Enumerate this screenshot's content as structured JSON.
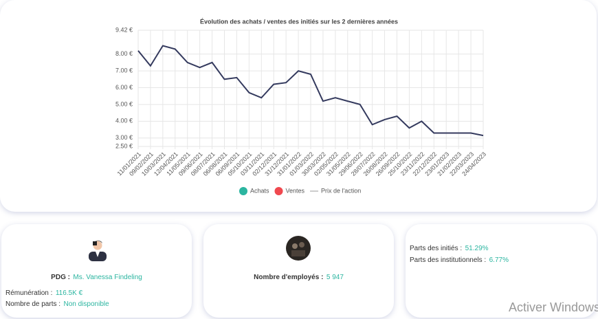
{
  "chart_data": {
    "type": "line",
    "title": "Évolution des achats / ventes des initiés sur les 2 dernières années",
    "categories": [
      "11/01/2021",
      "09/02/2021",
      "10/03/2021",
      "12/04/2021",
      "11/05/2021",
      "09/06/2021",
      "08/07/2021",
      "06/08/2021",
      "06/09/2021",
      "05/10/2021",
      "03/11/2021",
      "02/12/2021",
      "31/12/2021",
      "31/01/2022",
      "01/03/2022",
      "30/03/2022",
      "02/05/2022",
      "31/05/2022",
      "29/06/2022",
      "28/07/2022",
      "26/08/2022",
      "26/09/2022",
      "25/10/2022",
      "23/11/2022",
      "22/12/2022",
      "23/01/2023",
      "21/02/2023",
      "22/03/2023",
      "24/04/2023"
    ],
    "series": [
      {
        "name": "Achats",
        "color": "#2bb5a0",
        "values": [
          null,
          null,
          null,
          null,
          null,
          null,
          null,
          null,
          null,
          null,
          null,
          null,
          null,
          null,
          null,
          null,
          null,
          null,
          null,
          null,
          null,
          null,
          null,
          null,
          null,
          null,
          null,
          null,
          null
        ]
      },
      {
        "name": "Ventes",
        "color": "#f0484f",
        "values": [
          null,
          null,
          null,
          null,
          null,
          null,
          null,
          null,
          null,
          null,
          null,
          null,
          null,
          null,
          null,
          null,
          null,
          null,
          null,
          null,
          null,
          null,
          null,
          null,
          null,
          null,
          null,
          null,
          null
        ]
      },
      {
        "name": "Prix de l'action",
        "color": "#343a5e",
        "values": [
          8.2,
          7.3,
          8.5,
          8.3,
          7.5,
          7.2,
          7.5,
          6.5,
          6.6,
          5.7,
          5.4,
          6.2,
          6.3,
          7.0,
          6.8,
          5.2,
          5.4,
          5.2,
          5.0,
          3.8,
          4.1,
          4.3,
          3.6,
          4.0,
          3.3,
          3.3,
          3.3,
          3.3,
          3.15
        ]
      }
    ],
    "ylim": [
      2.5,
      9.42
    ],
    "yticks": [
      {
        "value": 2.5,
        "label": "2.50 €"
      },
      {
        "value": 3,
        "label": "3.00 €"
      },
      {
        "value": 4,
        "label": "4.00 €"
      },
      {
        "value": 5,
        "label": "5.00 €"
      },
      {
        "value": 6,
        "label": "6.00 €"
      },
      {
        "value": 7,
        "label": "7.00 €"
      },
      {
        "value": 8,
        "label": "8.00 €"
      },
      {
        "value": 9.42,
        "label": "9.42 €"
      }
    ],
    "grid": true
  },
  "cards": [
    {
      "rows": [
        {
          "label": "PDG :",
          "value": "Ms. Vanessa Findeling"
        },
        {
          "label": "Rémunération :",
          "value": "116.5K €"
        },
        {
          "label": "Nombre de parts :",
          "value": "Non disponible"
        }
      ]
    },
    {
      "rows": [
        {
          "label": "Nombre d'employés :",
          "value": "5 947"
        }
      ]
    },
    {
      "rows": [
        {
          "label": "Parts des initiés :",
          "value": "51.29%"
        },
        {
          "label": "Parts des institutionnels :",
          "value": "6.77%"
        }
      ]
    }
  ],
  "watermark": "Activer Windows"
}
